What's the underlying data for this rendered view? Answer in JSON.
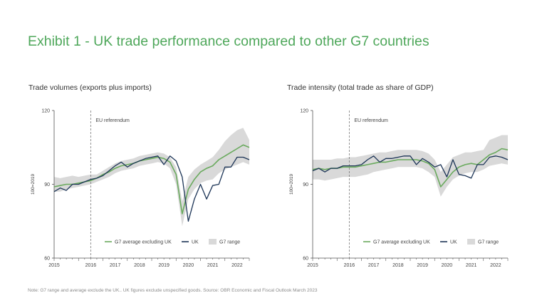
{
  "title": "Exhibit 1 - UK trade performance compared to other G7 countries",
  "footnote": "Note: G7 range and average exclude the UK.. UK figures exclude unspecified goods. Source: OBR Economic and Fiscal Outlook March 2023",
  "colors": {
    "g7": "#6aaa5e",
    "uk": "#1d3557",
    "range": "#d9d9d9",
    "axis": "#555555",
    "title": "#4ea75a"
  },
  "chart_data": [
    {
      "type": "line",
      "title": "Trade volumes (exports plus imports)",
      "ylabel": "100=2019",
      "ylim": [
        60,
        120
      ],
      "yticks": [
        "60",
        "90",
        "120"
      ],
      "xlim": [
        2015,
        2023
      ],
      "xtick_labels": [
        "2015",
        "2016",
        "2017",
        "2018",
        "2019",
        "2020",
        "2021",
        "2022"
      ],
      "annotation": {
        "label": "EU referendum",
        "x": 2016.5
      },
      "legend": [
        "G7 average excluding UK",
        "UK",
        "G7 range"
      ],
      "x": [
        2015.0,
        2015.25,
        2015.5,
        2015.75,
        2016.0,
        2016.25,
        2016.5,
        2016.75,
        2017.0,
        2017.25,
        2017.5,
        2017.75,
        2018.0,
        2018.25,
        2018.5,
        2018.75,
        2019.0,
        2019.25,
        2019.5,
        2019.75,
        2020.0,
        2020.25,
        2020.5,
        2020.75,
        2021.0,
        2021.25,
        2021.5,
        2021.75,
        2022.0,
        2022.25,
        2022.5,
        2022.75,
        2023.0
      ],
      "series": [
        {
          "name": "G7 average excluding UK",
          "values": [
            89,
            89.5,
            90,
            90,
            90.5,
            91,
            91.5,
            92.5,
            94,
            95,
            96.5,
            97.5,
            98,
            98.5,
            99.5,
            100,
            100.5,
            101,
            100.5,
            99,
            94,
            78,
            88,
            92,
            95,
            96.5,
            97.5,
            100,
            101.5,
            103,
            104.5,
            106,
            105
          ]
        },
        {
          "name": "UK",
          "values": [
            87,
            88.5,
            87.5,
            90,
            90,
            91,
            92,
            92.5,
            93.5,
            95.5,
            97.5,
            99,
            97,
            98.5,
            99.5,
            100.5,
            101,
            101.5,
            98,
            101.5,
            99.5,
            93,
            75,
            84,
            90,
            84,
            89.5,
            90,
            97,
            97,
            101,
            101,
            100
          ]
        },
        {
          "name": "G7 range",
          "lower": [
            87,
            87,
            88,
            88.5,
            89,
            89.5,
            90,
            91,
            92,
            93,
            94.5,
            95.5,
            96,
            96.5,
            97.5,
            98,
            98.5,
            99,
            98.5,
            96.5,
            90,
            73,
            84,
            88,
            90.5,
            91.5,
            92,
            94.5,
            96,
            97,
            98,
            99,
            98
          ],
          "upper": [
            93,
            92.5,
            93,
            93.5,
            93,
            93.5,
            94,
            94,
            95.5,
            97,
            98.5,
            99.5,
            100,
            100.5,
            101.5,
            102,
            102.5,
            103,
            102.5,
            101,
            97,
            83,
            93,
            96,
            98,
            99.5,
            101,
            104,
            107.5,
            110,
            112,
            113,
            108
          ]
        }
      ]
    },
    {
      "type": "line",
      "title": "Trade intensity (total trade as share of GDP)",
      "ylabel": "100=2019",
      "ylim": [
        60,
        120
      ],
      "yticks": [
        "60",
        "90",
        "120"
      ],
      "xlim": [
        2015,
        2023
      ],
      "xtick_labels": [
        "2015",
        "2016",
        "2017",
        "2018",
        "2019",
        "2020",
        "2021",
        "2022"
      ],
      "annotation": {
        "label": "EU referendum",
        "x": 2016.5
      },
      "legend": [
        "G7 average excluding UK",
        "UK",
        "G7 range"
      ],
      "x": [
        2015.0,
        2015.25,
        2015.5,
        2015.75,
        2016.0,
        2016.25,
        2016.5,
        2016.75,
        2017.0,
        2017.25,
        2017.5,
        2017.75,
        2018.0,
        2018.25,
        2018.5,
        2018.75,
        2019.0,
        2019.25,
        2019.5,
        2019.75,
        2020.0,
        2020.25,
        2020.5,
        2020.75,
        2021.0,
        2021.25,
        2021.5,
        2021.75,
        2022.0,
        2022.25,
        2022.5,
        2022.75,
        2023.0
      ],
      "series": [
        {
          "name": "G7 average excluding UK",
          "values": [
            96,
            96.5,
            96,
            96.5,
            96.5,
            97,
            97,
            97,
            97.5,
            98,
            98.5,
            99,
            99,
            99.5,
            100,
            100,
            100,
            100,
            99.5,
            98.5,
            96,
            89,
            92,
            95,
            97,
            98,
            98.5,
            98,
            100,
            102,
            103,
            104.5,
            104
          ]
        },
        {
          "name": "UK",
          "values": [
            95.5,
            96.5,
            95,
            96.5,
            96.5,
            97.5,
            97.5,
            97.5,
            98,
            100,
            101.5,
            99,
            100.5,
            100.5,
            101,
            101.5,
            101.5,
            98,
            100.5,
            99,
            97,
            98,
            93,
            100,
            94,
            93.5,
            92.5,
            98,
            98,
            101,
            101.5,
            101,
            100
          ]
        },
        {
          "name": "G7 range",
          "lower": [
            92,
            92,
            91.5,
            92,
            92.5,
            93,
            93,
            93,
            93.5,
            94,
            95,
            95.5,
            96,
            96.5,
            97,
            97,
            97,
            97,
            96.5,
            95,
            93,
            85,
            89,
            92,
            93.5,
            94.5,
            95,
            95,
            96,
            97.5,
            98,
            98.5,
            98
          ]
        },
        {
          "name": "G7 range upper",
          "values": [
            100,
            100,
            100,
            100,
            100.5,
            100.5,
            101,
            101,
            101.5,
            102,
            102.5,
            103,
            103,
            103.5,
            104,
            104,
            104,
            104,
            103.5,
            102.5,
            100,
            95,
            98,
            101,
            102,
            103,
            103,
            103.5,
            104,
            108,
            109,
            110,
            110
          ]
        }
      ]
    }
  ]
}
